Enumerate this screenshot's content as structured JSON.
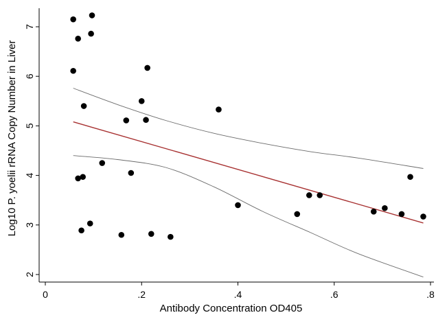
{
  "chart_data": {
    "type": "scatter",
    "title": "",
    "xlabel": "Antibody Concentration OD405",
    "ylabel": "Log10 P. yoelii rRNA Copy Number in Liver",
    "xlim": [
      0,
      0.8
    ],
    "ylim": [
      2,
      7
    ],
    "x_ticks": [
      0,
      0.2,
      0.4,
      0.6,
      0.8
    ],
    "x_tick_labels": [
      "0",
      ".2",
      ".4",
      ".6",
      ".8"
    ],
    "y_ticks": [
      2,
      3,
      4,
      5,
      6,
      7
    ],
    "y_tick_labels": [
      "2",
      "3",
      "4",
      "5",
      "6",
      "7"
    ],
    "grid": false,
    "colors": {
      "points": "#000000",
      "fit": "#a83232",
      "ci": "#6b6b6b"
    },
    "points": [
      {
        "x": 0.058,
        "y": 7.15
      },
      {
        "x": 0.097,
        "y": 7.23
      },
      {
        "x": 0.068,
        "y": 6.76
      },
      {
        "x": 0.095,
        "y": 6.86
      },
      {
        "x": 0.058,
        "y": 6.11
      },
      {
        "x": 0.212,
        "y": 6.17
      },
      {
        "x": 0.08,
        "y": 5.4
      },
      {
        "x": 0.2,
        "y": 5.5
      },
      {
        "x": 0.168,
        "y": 5.11
      },
      {
        "x": 0.209,
        "y": 5.12
      },
      {
        "x": 0.36,
        "y": 5.33
      },
      {
        "x": 0.118,
        "y": 4.25
      },
      {
        "x": 0.178,
        "y": 4.05
      },
      {
        "x": 0.068,
        "y": 3.94
      },
      {
        "x": 0.078,
        "y": 3.97
      },
      {
        "x": 0.093,
        "y": 3.03
      },
      {
        "x": 0.075,
        "y": 2.89
      },
      {
        "x": 0.158,
        "y": 2.8
      },
      {
        "x": 0.22,
        "y": 2.82
      },
      {
        "x": 0.26,
        "y": 2.76
      },
      {
        "x": 0.4,
        "y": 3.4
      },
      {
        "x": 0.523,
        "y": 3.22
      },
      {
        "x": 0.548,
        "y": 3.6
      },
      {
        "x": 0.57,
        "y": 3.6
      },
      {
        "x": 0.682,
        "y": 3.27
      },
      {
        "x": 0.705,
        "y": 3.34
      },
      {
        "x": 0.74,
        "y": 3.22
      },
      {
        "x": 0.758,
        "y": 3.97
      },
      {
        "x": 0.785,
        "y": 3.17
      }
    ],
    "fit_line": [
      {
        "x": 0.058,
        "y": 5.08
      },
      {
        "x": 0.785,
        "y": 3.04
      }
    ],
    "ci_upper": [
      {
        "x": 0.058,
        "y": 5.76
      },
      {
        "x": 0.15,
        "y": 5.43
      },
      {
        "x": 0.25,
        "y": 5.11
      },
      {
        "x": 0.35,
        "y": 4.85
      },
      {
        "x": 0.45,
        "y": 4.65
      },
      {
        "x": 0.55,
        "y": 4.48
      },
      {
        "x": 0.65,
        "y": 4.35
      },
      {
        "x": 0.785,
        "y": 4.14
      }
    ],
    "ci_lower": [
      {
        "x": 0.058,
        "y": 4.4
      },
      {
        "x": 0.15,
        "y": 4.32
      },
      {
        "x": 0.25,
        "y": 4.16
      },
      {
        "x": 0.35,
        "y": 3.77
      },
      {
        "x": 0.45,
        "y": 3.28
      },
      {
        "x": 0.55,
        "y": 2.85
      },
      {
        "x": 0.65,
        "y": 2.42
      },
      {
        "x": 0.785,
        "y": 1.95
      }
    ]
  }
}
